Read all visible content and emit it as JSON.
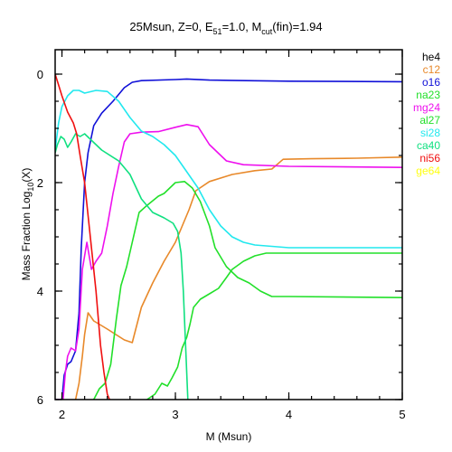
{
  "chart_data": {
    "type": "line",
    "title": {
      "prefix": "25Msun, Z=0, E",
      "e_sub": "51",
      "mid": "=1.0, M",
      "m_sub": "cut",
      "suffix": "(fin)=1.94"
    },
    "xlabel": "M (Msun)",
    "ylabel": {
      "prefix": "Mass Fraction Log",
      "sub": "10",
      "suffix": "(X)"
    },
    "xlim": [
      1.94,
      5.0
    ],
    "ylim": [
      -6,
      0.45
    ],
    "x_ticks": [
      2,
      3,
      4,
      5
    ],
    "x_tick_labels": [
      "2",
      "3",
      "4",
      "5"
    ],
    "y_ticks": [
      0,
      -2,
      -4,
      -6
    ],
    "y_tick_labels": [
      "0",
      "2",
      "4",
      "6"
    ],
    "legend_position": "right-outside",
    "series": [
      {
        "name": "he4",
        "color": "#000000",
        "points": []
      },
      {
        "name": "c12",
        "color": "#e8892a",
        "points": [
          [
            2.12,
            -6.0
          ],
          [
            2.15,
            -5.7
          ],
          [
            2.18,
            -5.2
          ],
          [
            2.2,
            -4.8
          ],
          [
            2.23,
            -4.4
          ],
          [
            2.28,
            -4.55
          ],
          [
            2.4,
            -4.7
          ],
          [
            2.55,
            -4.9
          ],
          [
            2.62,
            -4.95
          ],
          [
            2.7,
            -4.3
          ],
          [
            2.8,
            -3.85
          ],
          [
            2.9,
            -3.45
          ],
          [
            3.0,
            -3.1
          ],
          [
            3.05,
            -2.85
          ],
          [
            3.12,
            -2.5
          ],
          [
            3.18,
            -2.15
          ],
          [
            3.3,
            -1.98
          ],
          [
            3.5,
            -1.85
          ],
          [
            3.7,
            -1.78
          ],
          [
            3.85,
            -1.75
          ],
          [
            3.95,
            -1.57
          ],
          [
            4.2,
            -1.56
          ],
          [
            4.6,
            -1.55
          ],
          [
            5.0,
            -1.53
          ]
        ]
      },
      {
        "name": "o16",
        "color": "#1010d8",
        "points": [
          [
            1.94,
            -6.0
          ],
          [
            2.0,
            -6.0
          ],
          [
            2.02,
            -5.55
          ],
          [
            2.05,
            -5.35
          ],
          [
            2.08,
            -5.3
          ],
          [
            2.12,
            -5.1
          ],
          [
            2.15,
            -4.4
          ],
          [
            2.17,
            -3.2
          ],
          [
            2.2,
            -2.0
          ],
          [
            2.23,
            -1.45
          ],
          [
            2.28,
            -0.95
          ],
          [
            2.35,
            -0.72
          ],
          [
            2.45,
            -0.5
          ],
          [
            2.55,
            -0.25
          ],
          [
            2.62,
            -0.15
          ],
          [
            2.7,
            -0.12
          ],
          [
            3.0,
            -0.1
          ],
          [
            3.1,
            -0.09
          ],
          [
            3.3,
            -0.11
          ],
          [
            4.0,
            -0.13
          ],
          [
            5.0,
            -0.14
          ]
        ]
      },
      {
        "name": "na23",
        "color": "#22e02a",
        "points": [
          [
            2.75,
            -6.0
          ],
          [
            2.82,
            -5.9
          ],
          [
            2.88,
            -5.7
          ],
          [
            2.93,
            -5.75
          ],
          [
            2.97,
            -5.6
          ],
          [
            3.02,
            -5.4
          ],
          [
            3.06,
            -5.05
          ],
          [
            3.1,
            -4.85
          ],
          [
            3.13,
            -4.6
          ],
          [
            3.16,
            -4.3
          ],
          [
            3.22,
            -4.15
          ],
          [
            3.3,
            -4.05
          ],
          [
            3.38,
            -3.95
          ],
          [
            3.45,
            -3.75
          ],
          [
            3.5,
            -3.6
          ],
          [
            3.6,
            -3.45
          ],
          [
            3.7,
            -3.35
          ],
          [
            3.8,
            -3.3
          ],
          [
            4.0,
            -3.3
          ],
          [
            5.0,
            -3.3
          ]
        ]
      },
      {
        "name": "mg24",
        "color": "#ee10ee",
        "points": [
          [
            1.94,
            -6.0
          ],
          [
            2.01,
            -6.0
          ],
          [
            2.03,
            -5.5
          ],
          [
            2.05,
            -5.2
          ],
          [
            2.08,
            -5.05
          ],
          [
            2.12,
            -5.1
          ],
          [
            2.15,
            -4.7
          ],
          [
            2.18,
            -3.6
          ],
          [
            2.22,
            -3.1
          ],
          [
            2.26,
            -3.6
          ],
          [
            2.3,
            -3.45
          ],
          [
            2.35,
            -3.3
          ],
          [
            2.4,
            -2.8
          ],
          [
            2.45,
            -2.2
          ],
          [
            2.5,
            -1.7
          ],
          [
            2.55,
            -1.25
          ],
          [
            2.6,
            -1.1
          ],
          [
            2.7,
            -1.07
          ],
          [
            2.85,
            -1.06
          ],
          [
            3.0,
            -0.98
          ],
          [
            3.1,
            -0.93
          ],
          [
            3.2,
            -0.97
          ],
          [
            3.3,
            -1.3
          ],
          [
            3.45,
            -1.6
          ],
          [
            3.6,
            -1.67
          ],
          [
            4.0,
            -1.7
          ],
          [
            5.0,
            -1.72
          ]
        ]
      },
      {
        "name": "al27",
        "color": "#22e02a",
        "points": [
          [
            2.28,
            -6.0
          ],
          [
            2.33,
            -5.8
          ],
          [
            2.38,
            -5.7
          ],
          [
            2.43,
            -5.35
          ],
          [
            2.48,
            -4.5
          ],
          [
            2.52,
            -3.9
          ],
          [
            2.57,
            -3.55
          ],
          [
            2.62,
            -3.1
          ],
          [
            2.68,
            -2.55
          ],
          [
            2.75,
            -2.42
          ],
          [
            2.85,
            -2.25
          ],
          [
            2.9,
            -2.2
          ],
          [
            3.0,
            -2.0
          ],
          [
            3.08,
            -1.98
          ],
          [
            3.15,
            -2.1
          ],
          [
            3.22,
            -2.35
          ],
          [
            3.3,
            -2.8
          ],
          [
            3.35,
            -3.2
          ],
          [
            3.45,
            -3.55
          ],
          [
            3.55,
            -3.75
          ],
          [
            3.65,
            -3.85
          ],
          [
            3.75,
            -4.0
          ],
          [
            3.85,
            -4.1
          ],
          [
            4.0,
            -4.1
          ],
          [
            5.0,
            -4.12
          ]
        ]
      },
      {
        "name": "si28",
        "color": "#22e8ee",
        "points": [
          [
            1.94,
            -1.4
          ],
          [
            1.97,
            -0.9
          ],
          [
            2.0,
            -0.6
          ],
          [
            2.05,
            -0.4
          ],
          [
            2.1,
            -0.3
          ],
          [
            2.15,
            -0.3
          ],
          [
            2.2,
            -0.35
          ],
          [
            2.3,
            -0.3
          ],
          [
            2.4,
            -0.32
          ],
          [
            2.5,
            -0.5
          ],
          [
            2.6,
            -0.8
          ],
          [
            2.7,
            -1.05
          ],
          [
            2.8,
            -1.15
          ],
          [
            2.9,
            -1.3
          ],
          [
            3.0,
            -1.5
          ],
          [
            3.1,
            -1.8
          ],
          [
            3.2,
            -2.1
          ],
          [
            3.3,
            -2.5
          ],
          [
            3.4,
            -2.8
          ],
          [
            3.5,
            -3.0
          ],
          [
            3.6,
            -3.1
          ],
          [
            3.7,
            -3.15
          ],
          [
            4.0,
            -3.2
          ],
          [
            5.0,
            -3.2
          ]
        ]
      },
      {
        "name": "ca40",
        "color": "#10e080",
        "points": [
          [
            1.94,
            -1.45
          ],
          [
            1.96,
            -1.3
          ],
          [
            1.99,
            -1.15
          ],
          [
            2.02,
            -1.2
          ],
          [
            2.05,
            -1.35
          ],
          [
            2.08,
            -1.25
          ],
          [
            2.12,
            -1.1
          ],
          [
            2.16,
            -1.15
          ],
          [
            2.2,
            -1.1
          ],
          [
            2.25,
            -1.2
          ],
          [
            2.35,
            -1.4
          ],
          [
            2.5,
            -1.6
          ],
          [
            2.6,
            -1.85
          ],
          [
            2.7,
            -2.3
          ],
          [
            2.8,
            -2.55
          ],
          [
            2.9,
            -2.65
          ],
          [
            2.98,
            -2.75
          ],
          [
            3.02,
            -2.9
          ],
          [
            3.05,
            -3.3
          ],
          [
            3.07,
            -4.0
          ],
          [
            3.09,
            -5.0
          ],
          [
            3.11,
            -6.0
          ]
        ]
      },
      {
        "name": "ni56",
        "color": "#f01010",
        "points": [
          [
            1.94,
            0.0
          ],
          [
            1.97,
            -0.2
          ],
          [
            2.0,
            -0.4
          ],
          [
            2.05,
            -0.7
          ],
          [
            2.1,
            -0.9
          ],
          [
            2.13,
            -1.1
          ],
          [
            2.16,
            -1.5
          ],
          [
            2.2,
            -2.0
          ],
          [
            2.25,
            -3.0
          ],
          [
            2.3,
            -4.0
          ],
          [
            2.34,
            -5.0
          ],
          [
            2.37,
            -5.5
          ],
          [
            2.4,
            -5.9
          ],
          [
            2.42,
            -6.0
          ]
        ]
      },
      {
        "name": "ge64",
        "color": "#ffff10",
        "points": []
      }
    ]
  }
}
